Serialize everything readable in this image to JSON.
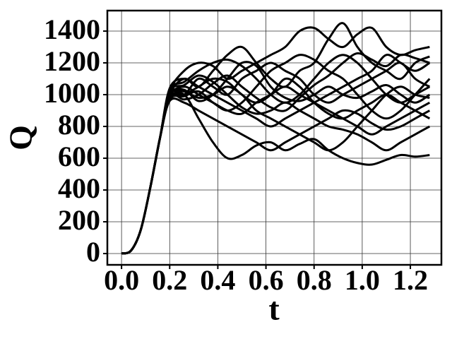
{
  "chart_data": {
    "type": "line",
    "x_label": "t",
    "y_label": "Q",
    "x": [
      0,
      0.04,
      0.08,
      0.12,
      0.16,
      0.2,
      0.26,
      0.32,
      0.38,
      0.44,
      0.5,
      0.56,
      0.62,
      0.68,
      0.74,
      0.8,
      0.86,
      0.92,
      0.98,
      1.04,
      1.1,
      1.16,
      1.22,
      1.28
    ],
    "series": [
      {
        "color": "#000000",
        "values": [
          0,
          20,
          150,
          420,
          730,
          980,
          1000,
          850,
          700,
          600,
          620,
          680,
          700,
          650,
          690,
          720,
          650,
          600,
          570,
          560,
          590,
          620,
          610,
          620
        ]
      },
      {
        "color": "#000000",
        "values": [
          0,
          20,
          150,
          420,
          730,
          1020,
          1150,
          1200,
          1180,
          1100,
          1150,
          1200,
          1250,
          1300,
          1400,
          1420,
          1350,
          1300,
          1380,
          1420,
          1300,
          1250,
          1280,
          1300
        ]
      },
      {
        "color": "#000000",
        "values": [
          0,
          20,
          150,
          420,
          730,
          1000,
          1100,
          1050,
          1150,
          1250,
          1300,
          1200,
          1100,
          1050,
          1150,
          1200,
          1350,
          1450,
          1300,
          1200,
          1150,
          1100,
          1200,
          1240
        ]
      },
      {
        "color": "#000000",
        "values": [
          0,
          20,
          150,
          420,
          730,
          990,
          1050,
          1000,
          950,
          900,
          880,
          950,
          1000,
          1050,
          1000,
          950,
          900,
          850,
          800,
          750,
          800,
          850,
          900,
          950
        ]
      },
      {
        "color": "#000000",
        "values": [
          0,
          20,
          150,
          420,
          730,
          1010,
          1000,
          1100,
          1050,
          1000,
          1100,
          1150,
          1200,
          1150,
          1100,
          1000,
          950,
          1000,
          1050,
          1100,
          1150,
          1200,
          1100,
          1050
        ]
      },
      {
        "color": "#000000",
        "values": [
          0,
          20,
          150,
          420,
          730,
          960,
          950,
          900,
          850,
          800,
          750,
          700,
          650,
          700,
          750,
          800,
          850,
          900,
          880,
          820,
          780,
          800,
          850,
          900
        ]
      },
      {
        "color": "#000000",
        "values": [
          0,
          20,
          150,
          420,
          730,
          1030,
          1080,
          1150,
          1200,
          1220,
          1180,
          1100,
          1000,
          950,
          1000,
          1100,
          1200,
          1250,
          1200,
          1100,
          1000,
          950,
          1000,
          1050
        ]
      },
      {
        "color": "#000000",
        "values": [
          0,
          20,
          150,
          420,
          730,
          1000,
          1020,
          980,
          1000,
          1050,
          1000,
          900,
          850,
          800,
          750,
          700,
          650,
          700,
          800,
          900,
          1000,
          1050,
          1000,
          980
        ]
      },
      {
        "color": "#000000",
        "values": [
          0,
          20,
          150,
          420,
          730,
          980,
          1000,
          1050,
          1100,
          1080,
          1000,
          950,
          1000,
          1100,
          1050,
          950,
          880,
          850,
          900,
          950,
          1000,
          950,
          900,
          850
        ]
      },
      {
        "color": "#000000",
        "values": [
          0,
          20,
          150,
          420,
          730,
          1040,
          1100,
          1050,
          1000,
          950,
          900,
          850,
          800,
          850,
          900,
          950,
          1000,
          1050,
          1100,
          1150,
          1250,
          1200,
          1150,
          1200
        ]
      },
      {
        "color": "#000000",
        "values": [
          0,
          20,
          150,
          420,
          730,
          970,
          990,
          1020,
          950,
          900,
          950,
          1050,
          1150,
          1200,
          1250,
          1220,
          1150,
          1100,
          1000,
          900,
          850,
          900,
          1000,
          1100
        ]
      },
      {
        "color": "#000000",
        "values": [
          0,
          20,
          150,
          420,
          730,
          1020,
          1060,
          1120,
          1080,
          1000,
          920,
          880,
          900,
          950,
          900,
          850,
          800,
          780,
          750,
          700,
          650,
          700,
          750,
          800
        ]
      },
      {
        "color": "#000000",
        "values": [
          0,
          20,
          150,
          420,
          730,
          1000,
          1030,
          960,
          1000,
          1100,
          1200,
          1180,
          1050,
          980,
          960,
          1000,
          1050,
          1000,
          980,
          1020,
          1060,
          1000,
          950,
          1000
        ]
      },
      {
        "color": "#000000",
        "values": [
          0,
          20,
          150,
          420,
          730,
          990,
          970,
          1000,
          1070,
          1120,
          1050,
          980,
          920,
          900,
          980,
          1060,
          1120,
          1200,
          1260,
          1220,
          1180,
          1250,
          1230,
          1200
        ]
      }
    ],
    "xlim": [
      -0.059,
      1.329
    ],
    "ylim": [
      -71,
      1529
    ],
    "xticks": [
      {
        "value": 0,
        "label": "0.0"
      },
      0.2,
      0.4,
      0.6,
      0.8,
      {
        "value": 1,
        "label": "1.0"
      },
      1.2
    ],
    "yticks": [
      0,
      200,
      400,
      600,
      800,
      1000,
      1200,
      1400
    ],
    "grid": true
  }
}
